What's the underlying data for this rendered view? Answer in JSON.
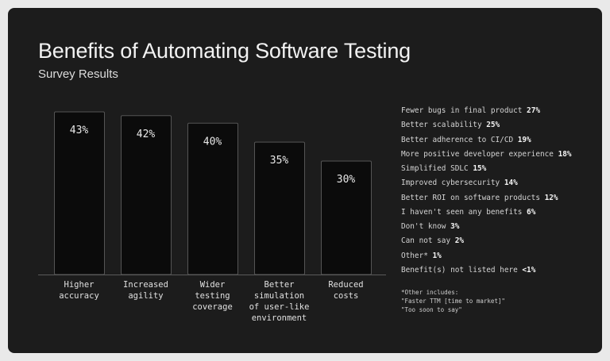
{
  "chart_data": {
    "type": "bar",
    "title": "Benefits of Automating Software Testing",
    "subtitle": "Survey Results",
    "categories": [
      [
        "Higher",
        "accuracy"
      ],
      [
        "Increased",
        "agility"
      ],
      [
        "Wider",
        "testing",
        "coverage"
      ],
      [
        "Better",
        "simulation",
        "of user-like",
        "environment"
      ],
      [
        "Reduced",
        "costs"
      ]
    ],
    "values": [
      43,
      42,
      40,
      35,
      30
    ],
    "value_labels": [
      "43%",
      "42%",
      "40%",
      "35%",
      "30%"
    ],
    "ylim": [
      0,
      43
    ],
    "grid": false,
    "colors": {
      "background": "#1c1c1c",
      "bar_fill": "#0b0b0b",
      "bar_stroke": "#555555",
      "text": "#e0e0e0"
    },
    "other_responses": [
      {
        "label": "Fewer bugs in final product",
        "value": "27%"
      },
      {
        "label": "Better scalability",
        "value": "25%"
      },
      {
        "label": "Better adherence to CI/CD",
        "value": "19%"
      },
      {
        "label": "More positive developer experience",
        "value": "18%"
      },
      {
        "label": "Simplified SDLC",
        "value": "15%"
      },
      {
        "label": "Improved cybersecurity",
        "value": "14%"
      },
      {
        "label": "Better ROI on software products",
        "value": "12%"
      },
      {
        "label": "I haven't seen any benefits",
        "value": "6%"
      },
      {
        "label": "Don't know",
        "value": "3%"
      },
      {
        "label": "Can not say",
        "value": "2%"
      },
      {
        "label": "Other*",
        "value": "1%"
      },
      {
        "label": "Benefit(s) not listed here",
        "value": "<1%"
      }
    ],
    "footnote": [
      "*Other includes:",
      "\"Faster TTM [time to market]\"",
      "\"Too soon to say\""
    ]
  }
}
